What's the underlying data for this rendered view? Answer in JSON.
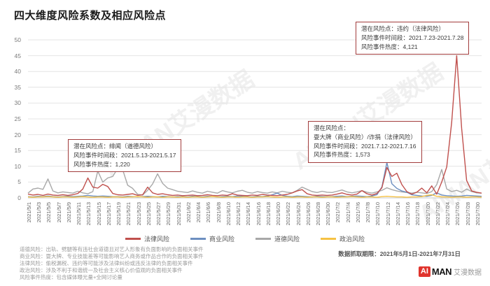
{
  "title": "四大维度风险系数及相应风险点",
  "watermark": {
    "text": "AIMAN艾漫数据"
  },
  "chart_data": {
    "type": "line",
    "grid": "horizontal",
    "legend_position": "bottom",
    "ylim": [
      0,
      50
    ],
    "y_ticks": [
      0,
      5,
      10,
      15,
      20,
      25,
      30,
      35,
      40,
      45,
      50
    ],
    "x_range": "2021/5/1 - 2021/7/31 (daily)",
    "x_tick_labels": [
      "2021/5/1",
      "2021/5/3",
      "2021/5/5",
      "2021/5/7",
      "2021/5/9",
      "2021/5/11",
      "2021/5/13",
      "2021/5/15",
      "2021/5/17",
      "2021/5/19",
      "2021/5/21",
      "2021/5/23",
      "2021/5/25",
      "2021/5/27",
      "2021/5/29",
      "2021/5/31",
      "2021/6/2",
      "2021/6/4",
      "2021/6/6",
      "2021/6/8",
      "2021/6/10",
      "2021/6/12",
      "2021/6/14",
      "2021/6/16",
      "2021/6/18",
      "2021/6/20",
      "2021/6/22",
      "2021/6/24",
      "2021/6/26",
      "2021/6/28",
      "2021/6/30",
      "2021/7/2",
      "2021/7/4",
      "2021/7/6",
      "2021/7/8",
      "2021/7/10",
      "2021/7/12",
      "2021/7/14",
      "2021/7/16",
      "2021/7/18",
      "2021/7/20",
      "2021/7/22",
      "2021/7/24",
      "2021/7/26",
      "2021/7/28",
      "2021/7/30"
    ],
    "series": [
      {
        "name": "法律风险",
        "color": "#c0504d",
        "values": [
          1.2,
          0.9,
          1.1,
          0.8,
          1.2,
          0.9,
          0.8,
          1.0,
          0.8,
          1.0,
          1.4,
          2.8,
          6.3,
          3.4,
          3.1,
          4.3,
          3.6,
          1.4,
          1.0,
          0.9,
          1.1,
          1.3,
          0.8,
          1.0,
          3.4,
          1.6,
          1.1,
          1.3,
          1.0,
          0.8,
          0.9,
          0.7,
          0.8,
          0.9,
          0.7,
          0.8,
          1.0,
          0.8,
          0.7,
          0.9,
          0.8,
          1.3,
          0.9,
          0.8,
          0.7,
          0.9,
          0.8,
          1.1,
          0.9,
          0.8,
          0.7,
          0.9,
          1.1,
          1.6,
          2.2,
          2.6,
          1.3,
          0.9,
          0.8,
          0.9,
          0.8,
          0.9,
          1.2,
          1.6,
          1.1,
          0.9,
          1.2,
          2.3,
          1.3,
          0.9,
          1.4,
          3.2,
          9.6,
          6.8,
          7.8,
          4.2,
          2.0,
          1.2,
          1.8,
          3.1,
          1.6,
          3.8,
          1.2,
          5.0,
          9.8,
          24.0,
          45.0,
          22.0,
          5.5,
          2.2,
          1.8,
          1.5
        ]
      },
      {
        "name": "商业风险",
        "color": "#6d8fc0",
        "values": [
          0.4,
          0.3,
          0.5,
          0.4,
          0.6,
          0.4,
          0.3,
          0.4,
          0.5,
          0.4,
          0.5,
          0.6,
          0.8,
          0.6,
          0.5,
          0.6,
          0.5,
          0.4,
          0.4,
          0.3,
          0.5,
          0.4,
          0.3,
          0.4,
          0.5,
          0.4,
          0.3,
          0.5,
          0.4,
          0.3,
          0.4,
          0.4,
          0.3,
          0.5,
          0.4,
          0.3,
          0.5,
          0.4,
          0.3,
          0.4,
          0.5,
          0.4,
          0.6,
          0.5,
          0.4,
          0.3,
          0.5,
          0.4,
          0.6,
          1.0,
          1.5,
          0.8,
          0.5,
          0.4,
          0.6,
          0.5,
          0.4,
          0.3,
          0.5,
          0.4,
          0.4,
          0.4,
          0.5,
          0.6,
          0.4,
          0.5,
          0.6,
          0.5,
          0.4,
          0.6,
          1.0,
          3.5,
          11.2,
          4.5,
          3.0,
          2.2,
          1.8,
          1.0,
          0.8,
          0.6,
          0.5,
          0.8,
          1.6,
          0.9,
          0.7,
          0.6,
          0.5,
          0.6,
          0.8,
          0.7,
          0.6,
          0.5
        ]
      },
      {
        "name": "道德风险",
        "color": "#a8a8a8",
        "values": [
          1.5,
          2.8,
          3.1,
          2.7,
          6.0,
          2.2,
          1.6,
          1.9,
          1.7,
          1.5,
          2.1,
          1.6,
          1.3,
          2.0,
          8.5,
          5.0,
          6.3,
          6.8,
          9.4,
          8.9,
          4.0,
          3.0,
          1.1,
          0.9,
          2.4,
          4.4,
          7.6,
          4.6,
          3.1,
          2.6,
          2.1,
          1.9,
          1.7,
          2.2,
          1.8,
          1.5,
          2.1,
          1.8,
          1.5,
          2.3,
          1.9,
          1.6,
          2.1,
          2.4,
          1.8,
          1.5,
          2.0,
          1.7,
          1.5,
          1.9,
          1.6,
          2.1,
          1.8,
          1.6,
          2.4,
          3.4,
          2.7,
          2.0,
          1.7,
          2.1,
          1.8,
          1.7,
          2.1,
          2.5,
          1.9,
          1.6,
          1.9,
          2.3,
          1.8,
          1.5,
          1.9,
          2.4,
          3.2,
          2.6,
          2.2,
          1.9,
          1.7,
          1.5,
          1.8,
          1.6,
          1.4,
          2.0,
          4.2,
          9.0,
          2.8,
          2.0,
          2.4,
          1.8,
          2.8,
          2.0,
          1.6,
          1.5
        ]
      },
      {
        "name": "政治风险",
        "color": "#f6c244",
        "values": [
          0.3,
          0.2,
          0.3,
          0.3,
          0.4,
          0.3,
          0.2,
          0.3,
          0.3,
          0.2,
          0.3,
          0.4,
          0.3,
          0.2,
          0.3,
          0.3,
          0.2,
          0.3,
          0.3,
          0.2,
          0.3,
          0.3,
          0.4,
          0.3,
          0.2,
          0.3,
          0.3,
          0.2,
          0.3,
          0.3,
          0.2,
          0.3,
          0.2,
          0.3,
          0.3,
          0.2,
          0.3,
          0.4,
          0.3,
          0.2,
          0.3,
          0.3,
          0.2,
          0.3,
          0.3,
          0.2,
          0.3,
          0.3,
          0.4,
          0.3,
          0.2,
          0.3,
          0.3,
          0.2,
          0.3,
          0.3,
          0.2,
          0.3,
          0.3,
          0.2,
          0.3,
          0.3,
          0.2,
          0.3,
          0.3,
          0.4,
          0.3,
          0.2,
          0.3,
          0.3,
          0.2,
          0.4,
          0.5,
          0.4,
          0.3,
          0.3,
          0.2,
          0.3,
          0.3,
          0.4,
          0.8,
          1.0,
          0.5,
          0.3,
          0.3,
          0.2,
          0.3,
          0.3,
          0.2,
          0.3,
          0.3,
          0.2
        ]
      }
    ]
  },
  "annotations": [
    {
      "lines": [
        "潜在风险点：绯闻（道德风险）",
        "风险事件时间段：2021.5.13-2021.5.17",
        "风险事件热度：1,220"
      ]
    },
    {
      "lines": [
        "潜在风险点：",
        "耍大牌（商业风险）/诈捐（法律风险）",
        "风险事件时间段：2021.7.12-2021.7.16",
        "风险事件热度：1,573"
      ]
    },
    {
      "lines": [
        "潜在风险点：违约（法律风险）",
        "风险事件时间段：2021.7.23-2021.7.28",
        "风险事件热度：4,121"
      ]
    }
  ],
  "footnotes": [
    "道德风险：出轨、劈腿等有违社会道德且对艺人形象有负面影响的负面相关事件",
    "商业风险：耍大牌、专业技能差等可能影响艺人商务或作品合作的负面相关事件",
    "法律风险：偷税漏税、违约等可能涉及法律纠纷或违反法律的负面相关事件",
    "政治风险：涉及不利于和谐统一及社会主义核心价值观的负面相关事件",
    "风险事件热度：包含媒体曝光量+全网讨论量"
  ],
  "data_period": "数据抓取期限：2021年5月1日-2021年7月31日",
  "logo": {
    "ai": "AI",
    "man": "MAN",
    "suffix": "艾漫数据"
  },
  "colors": {
    "annotation_border": "#a23c3c",
    "grid_line": "#e4e4e4",
    "axis_line": "#c9c9c9",
    "brand_red": "#e0342d"
  }
}
